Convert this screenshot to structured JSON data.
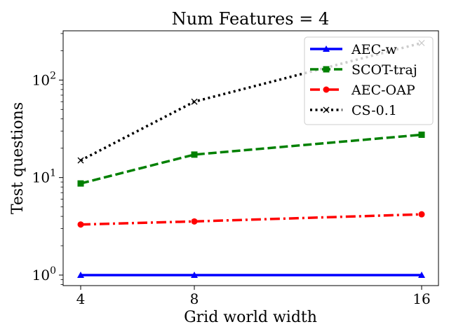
{
  "chart_data": {
    "type": "line",
    "title": "Num Features = 4",
    "xlabel": "Grid world width",
    "ylabel": "Test questions",
    "x": [
      4,
      8,
      16
    ],
    "x_ticks": [
      "4",
      "8",
      "16"
    ],
    "y_scale": "log",
    "ylim": [
      0.78,
      320
    ],
    "y_ticks": [
      {
        "value": 1,
        "label": "10^0"
      },
      {
        "value": 10,
        "label": "10^1"
      },
      {
        "value": 100,
        "label": "10^2"
      }
    ],
    "grid": false,
    "legend_position": "top-right",
    "series": [
      {
        "name": "AEC-w",
        "values": [
          1,
          1,
          1
        ],
        "color": "#0000ff",
        "dash": "solid",
        "marker": "triangle"
      },
      {
        "name": "SCOT-traj",
        "values": [
          8.7,
          17.2,
          27.5
        ],
        "color": "#008000",
        "dash": "dashed",
        "marker": "square"
      },
      {
        "name": "AEC-OAP",
        "values": [
          3.3,
          3.55,
          4.2
        ],
        "color": "#ff0000",
        "dash": "dashdot",
        "marker": "circle"
      },
      {
        "name": "CS-0.1",
        "values": [
          15,
          60,
          240
        ],
        "color": "#000000",
        "dash": "dotted",
        "marker": "x"
      }
    ]
  }
}
